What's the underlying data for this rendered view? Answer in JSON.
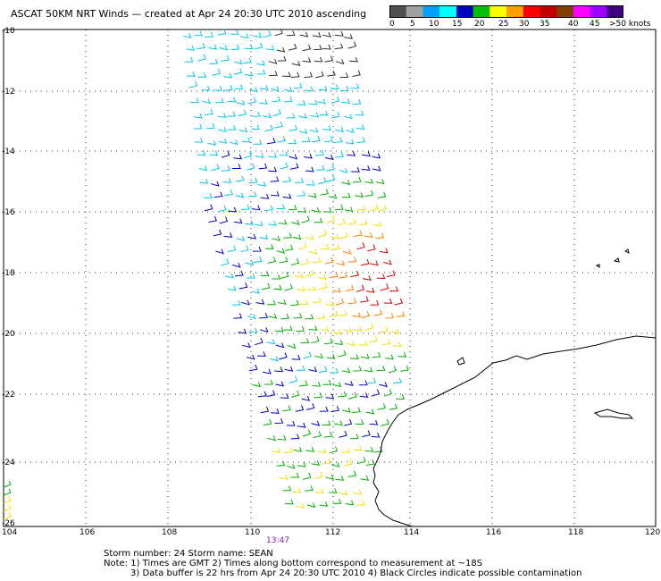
{
  "header": {
    "title": "ASCAT 50KM NRT Winds — created at Apr 24 20:30 UTC 2010 ascending"
  },
  "legend": {
    "colors": [
      "#505050",
      "#a0a0a0",
      "#00a0ff",
      "#00ffff",
      "#0000c0",
      "#00c000",
      "#ffff00",
      "#ffa000",
      "#ff0000",
      "#c00000",
      "#804000",
      "#ff00ff",
      "#a000ff",
      "#400080"
    ],
    "labels": [
      "0",
      "5",
      "10",
      "15",
      "20",
      "25",
      "30",
      "35",
      "40",
      "45",
      ">50 knots"
    ]
  },
  "map": {
    "lat_labels": [
      "-10",
      "-12",
      "-14",
      "-16",
      "-18",
      "-20",
      "-22",
      "-24",
      "-26"
    ],
    "lon_labels": [
      "104",
      "106",
      "108",
      "110",
      "112",
      "114",
      "116",
      "118",
      "120"
    ],
    "time_label": "13:47"
  },
  "footer": {
    "line1": "Storm number: 24     Storm name: SEAN",
    "line2": "Note: 1) Times are GMT  2) Times along bottom correspond to measurement at ~18S",
    "line3": "3) Data buffer is 22 hrs from Apr 24 20:30 UTC 2010   4) Black Circles indicate possible contamination"
  }
}
